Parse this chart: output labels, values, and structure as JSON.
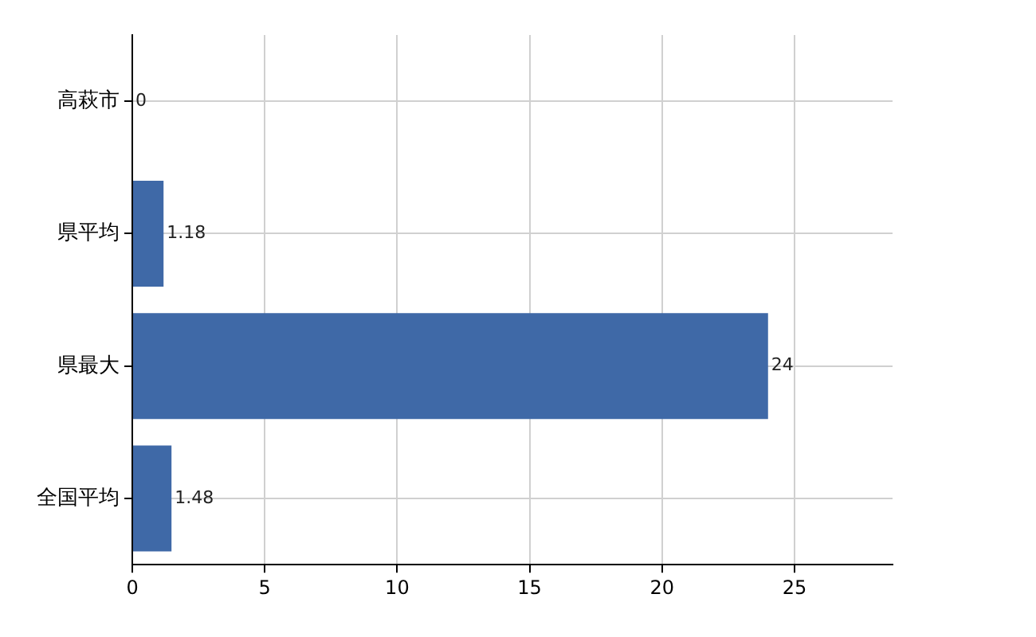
{
  "chart_data": {
    "type": "bar",
    "orientation": "horizontal",
    "categories": [
      "高萩市",
      "県平均",
      "県最大",
      "全国平均"
    ],
    "values": [
      0,
      1.18,
      24,
      1.48
    ],
    "color": "#3f69a7",
    "xlim": [
      0,
      28.7
    ],
    "xticks": [
      0,
      5,
      10,
      15,
      20,
      25
    ],
    "grid": true,
    "data_labels": true
  }
}
